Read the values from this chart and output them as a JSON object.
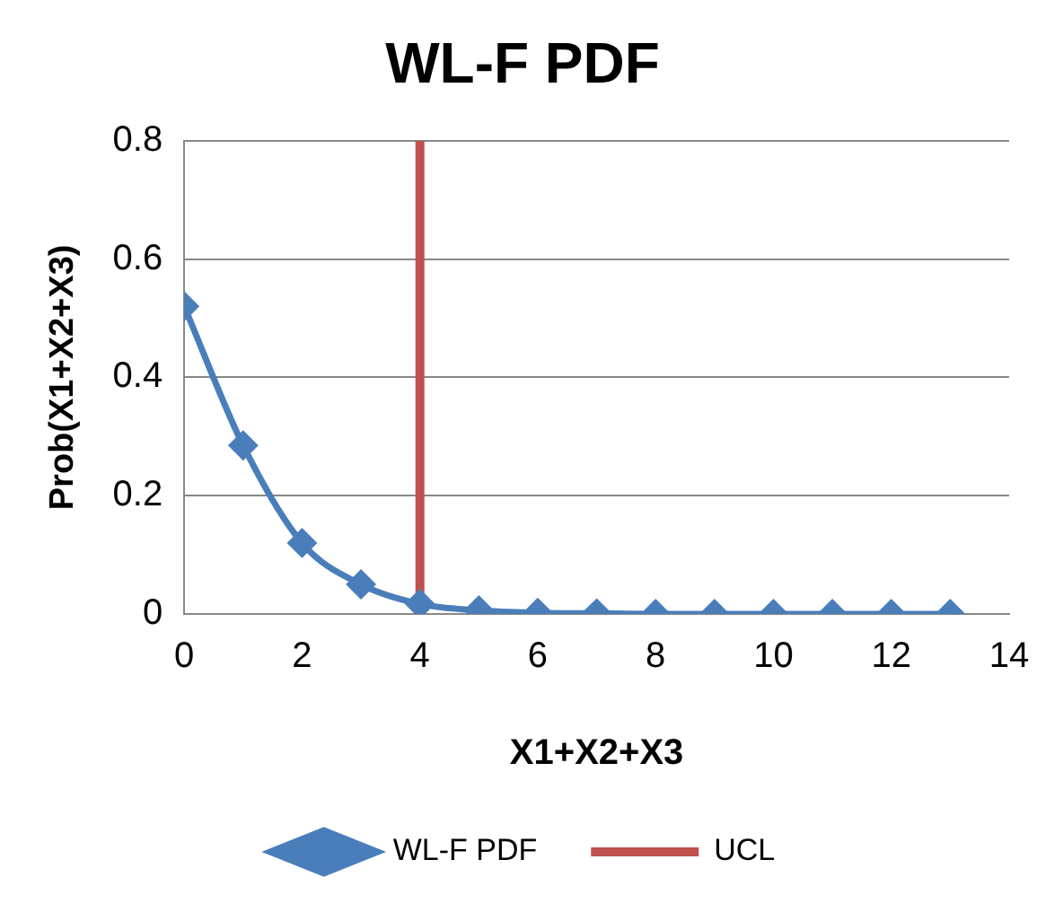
{
  "chart_data": {
    "type": "line",
    "title": "WL-F PDF",
    "xlabel": "X1+X2+X3",
    "ylabel": "Prob(X1+X2+X3)",
    "x": [
      0,
      1,
      2,
      3,
      4,
      5,
      6,
      7,
      8,
      9,
      10,
      11,
      12,
      13
    ],
    "series": [
      {
        "name": "WL-F PDF",
        "color": "#4a7ebb",
        "marker": "diamond",
        "values": [
          0.52,
          0.285,
          0.12,
          0.05,
          0.017,
          0.006,
          0.002,
          0.001,
          0,
          0,
          0,
          0,
          0,
          0
        ]
      },
      {
        "name": "UCL",
        "color": "#c0504d",
        "marker": "none",
        "x": [
          4,
          4
        ],
        "values": [
          0,
          0.8
        ]
      }
    ],
    "xlim": [
      0,
      14
    ],
    "xticks": [
      0,
      2,
      4,
      6,
      8,
      10,
      12,
      14
    ],
    "ylim": [
      0,
      0.8
    ],
    "yticks": [
      0,
      0.2,
      0.4,
      0.6,
      0.8
    ],
    "grid": "y",
    "legend": "bottom"
  }
}
